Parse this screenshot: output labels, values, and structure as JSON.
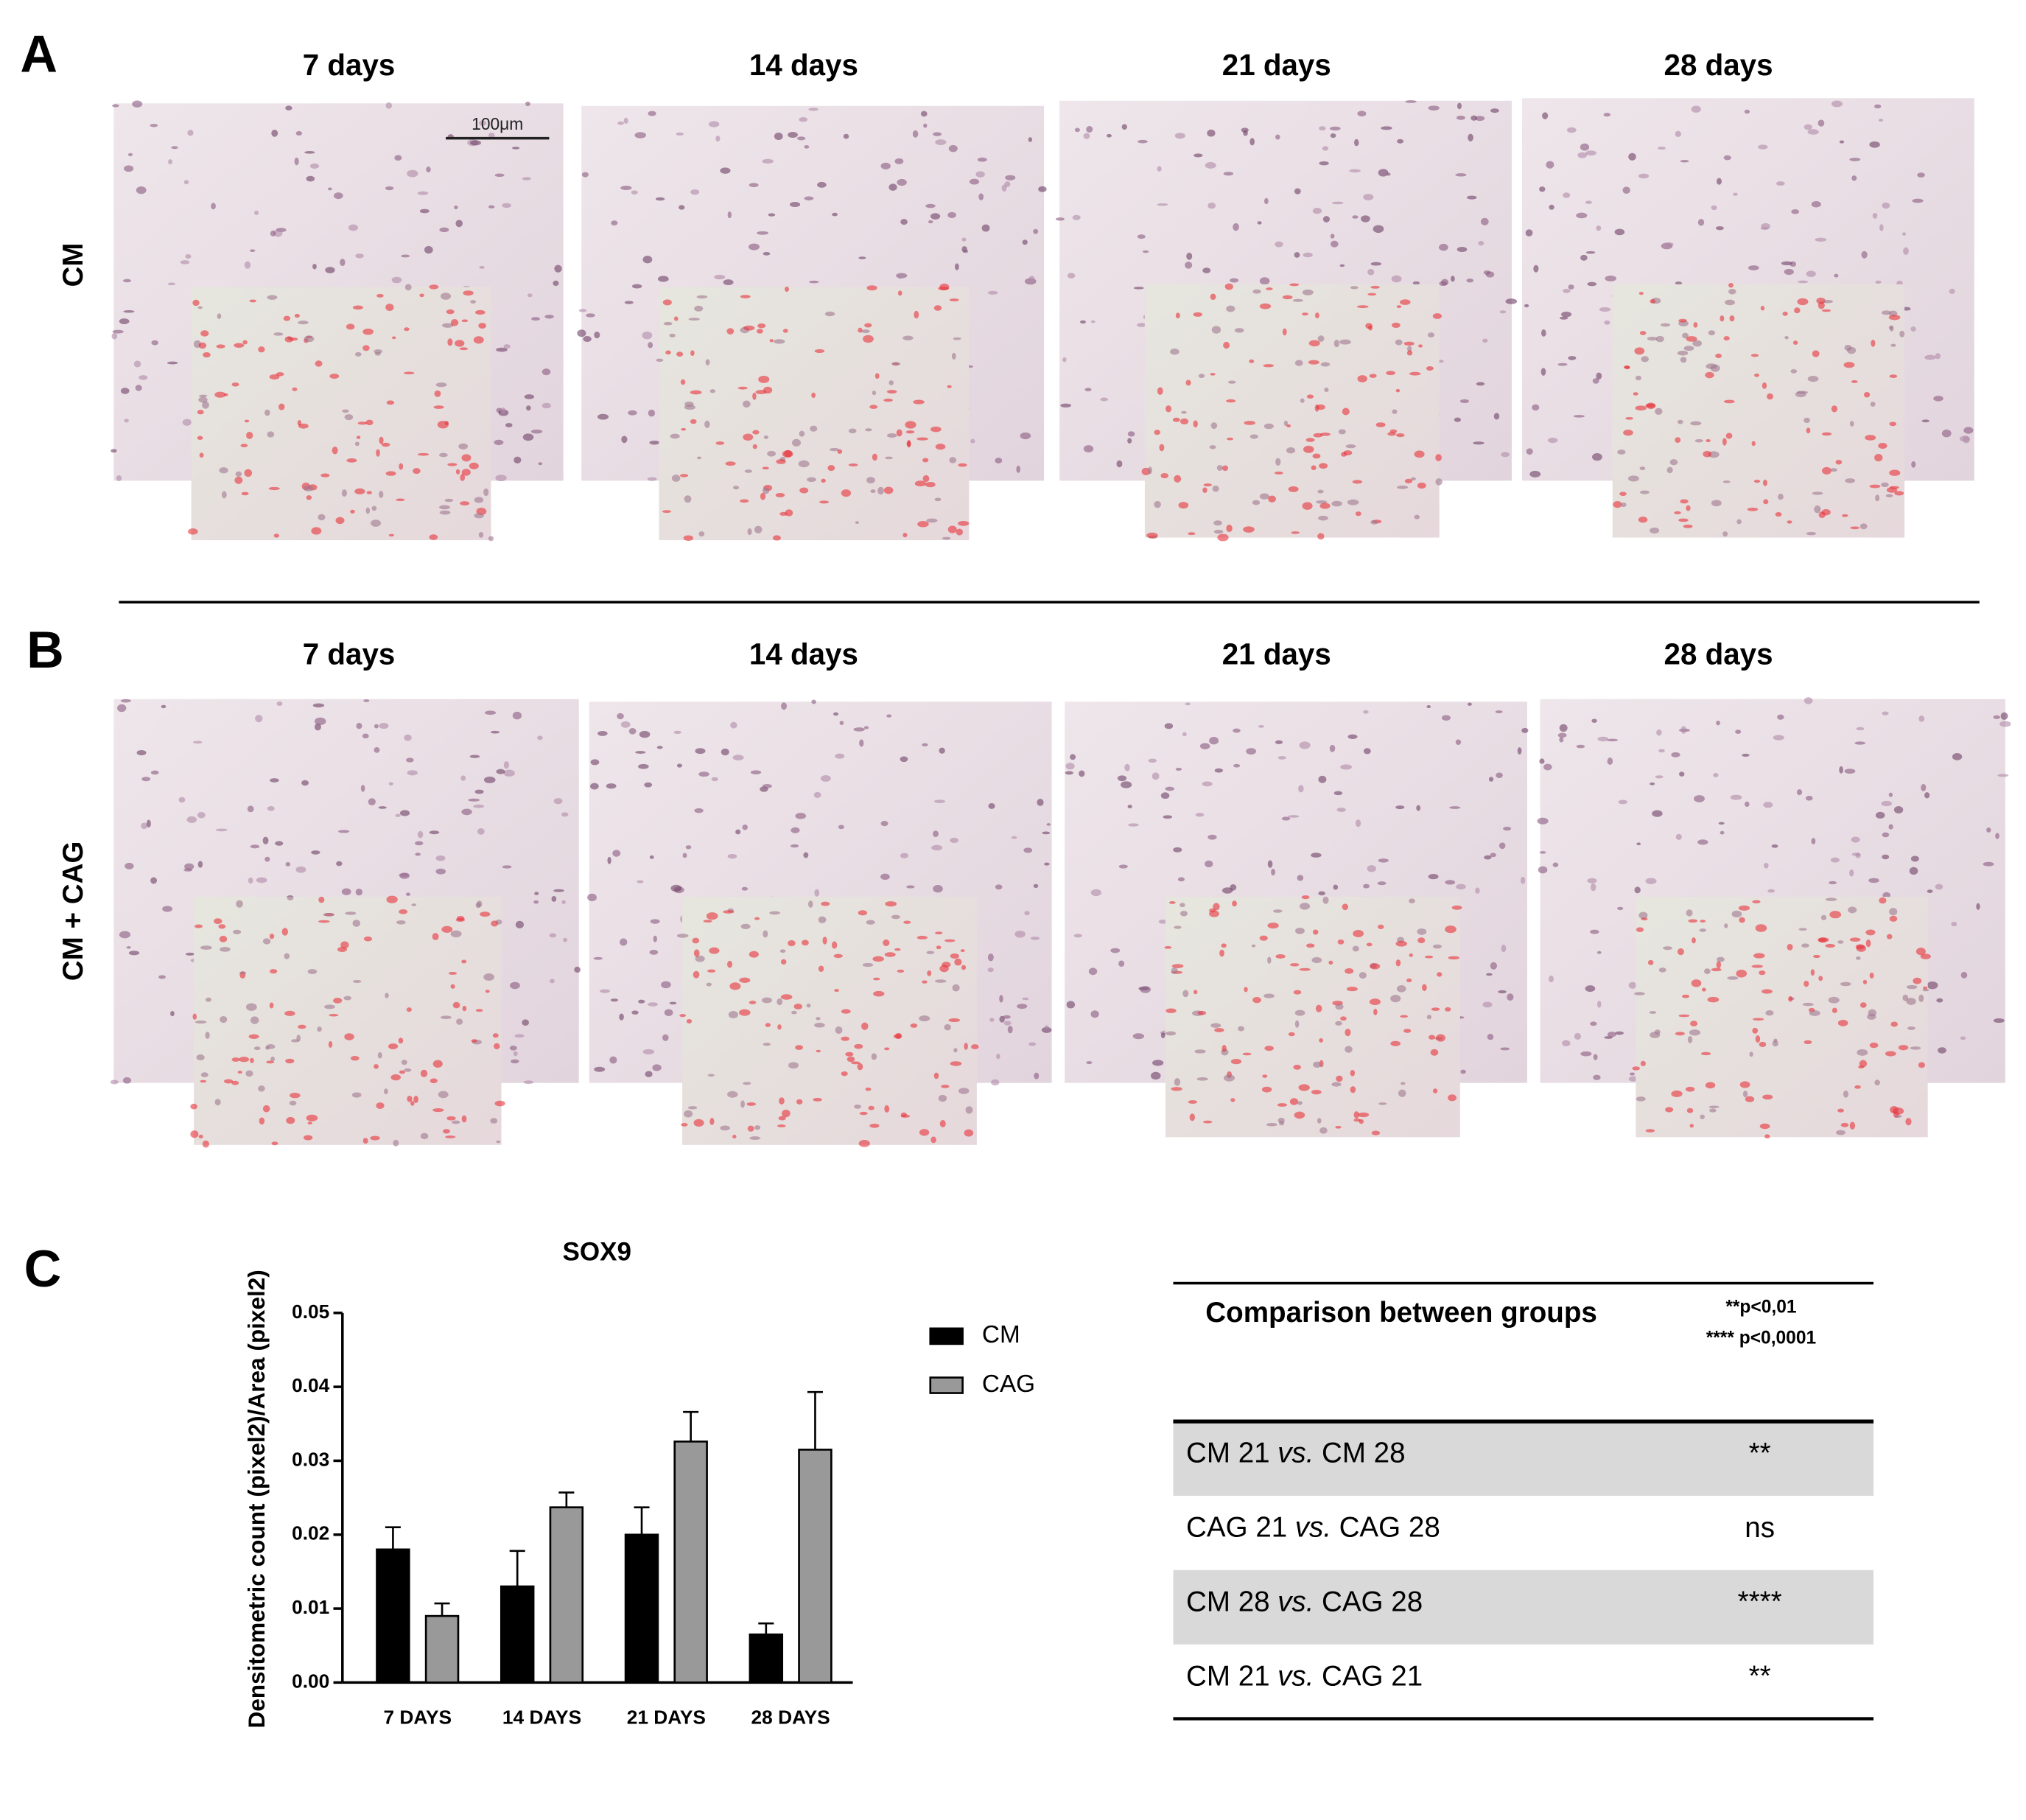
{
  "panels": {
    "A": {
      "label": "A",
      "row_label": "CM",
      "columns": [
        "7 days",
        "14 days",
        "21 days",
        "28 days"
      ],
      "scale_bar": "100μm"
    },
    "B": {
      "label": "B",
      "row_label": "CM + CAG",
      "columns": [
        "7 days",
        "14 days",
        "21 days",
        "28 days"
      ]
    },
    "C": {
      "label": "C"
    }
  },
  "chart_data": {
    "type": "bar",
    "title": "SOX9",
    "y_label": "Densitometric count (pixel2)/Area (pixel2)",
    "categories": [
      "7 DAYS",
      "14 DAYS",
      "21 DAYS",
      "28 DAYS"
    ],
    "series": [
      {
        "name": "CM",
        "color": "#000000",
        "values": [
          0.018,
          0.013,
          0.02,
          0.0065
        ],
        "errors": [
          0.003,
          0.0048,
          0.0037,
          0.0015
        ]
      },
      {
        "name": "CAG",
        "color": "#999999",
        "values": [
          0.009,
          0.0237,
          0.0326,
          0.0315
        ],
        "errors": [
          0.0017,
          0.002,
          0.004,
          0.0078
        ]
      }
    ],
    "ylim": [
      0,
      0.05
    ],
    "yticks": [
      {
        "value": 0,
        "label": "0.00"
      },
      0.01,
      0.02,
      0.03,
      0.04,
      0.05
    ],
    "legend": "right"
  },
  "table": {
    "header": "Comparison between groups",
    "notes": [
      "**p<0,01",
      "**** p<0,0001"
    ],
    "rows": [
      [
        "CM 21",
        "vs.",
        "CM 28",
        "**"
      ],
      [
        "CAG 21",
        "vs.",
        "CAG 28",
        "ns"
      ],
      [
        "CM 28",
        "vs.",
        "CAG 28",
        "****"
      ],
      [
        "CM 21",
        "vs.",
        "CAG 21",
        "**"
      ]
    ]
  }
}
